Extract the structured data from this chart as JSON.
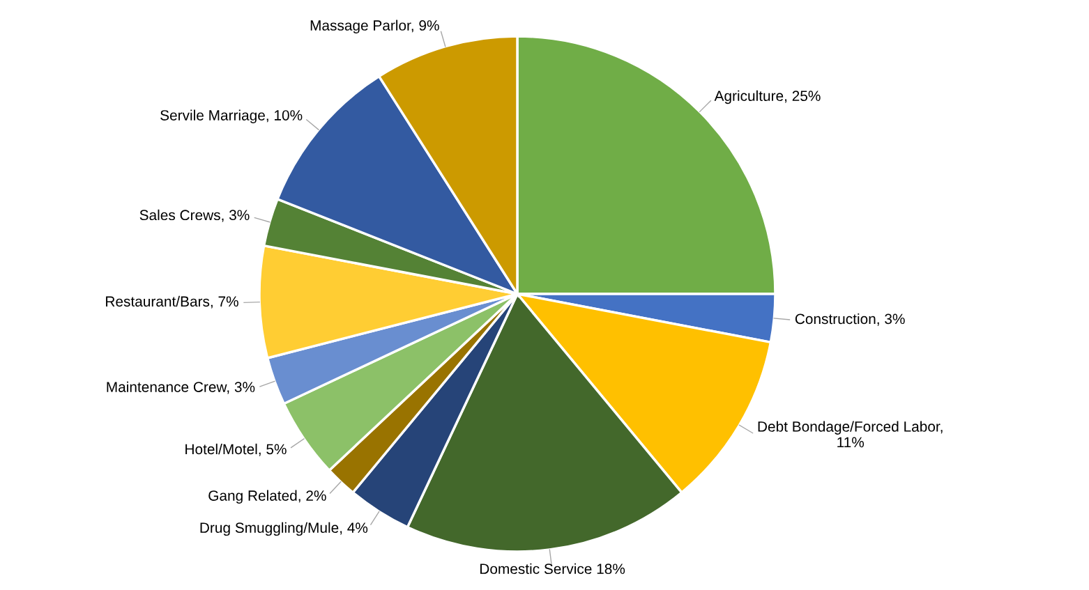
{
  "chart_data": {
    "type": "pie",
    "categories": [
      "Agriculture, 25%",
      "Construction, 3%",
      "Debt Bondage/Forced Labor,\n11%",
      "Domestic Service 18%",
      "Drug Smuggling/Mule, 4%",
      "Gang Related, 2%",
      "Hotel/Motel, 5%",
      "Maintenance Crew, 3%",
      "Restaurant/Bars, 7%",
      "Sales Crews, 3%",
      "Servile Marriage, 10%",
      "Massage Parlor, 9%"
    ],
    "values": [
      25,
      3,
      11,
      18,
      4,
      2,
      5,
      3,
      7,
      3,
      10,
      9
    ],
    "colors": [
      "#70ad47",
      "#4472c4",
      "#ffc000",
      "#43682b",
      "#264478",
      "#997300",
      "#8cc168",
      "#698ed0",
      "#ffcd33",
      "#548235",
      "#335aa1",
      "#cc9a00"
    ]
  }
}
